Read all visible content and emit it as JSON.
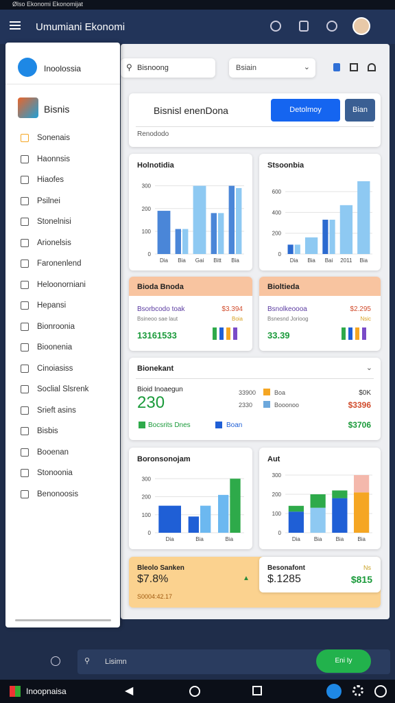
{
  "status_bar": {
    "title": "Ølso Ekonomi Ekonomijat"
  },
  "app_bar": {
    "title": "Umumiani Ekonomi"
  },
  "sidebar": {
    "brand": "Inoolossia",
    "section": "Bisnis",
    "items": [
      "Sonenais",
      "Haonnsis",
      "Hiaofes",
      "Psilnei",
      "Stonelnisi",
      "Arionelsis",
      "Faronenlend",
      "Heloonorniani",
      "Hepansi",
      "Bionroonia",
      "Bioonenia",
      "Cinoiasiss",
      "Soclial Slsrenk",
      "Srieft asins",
      "Bisbis",
      "Booenan",
      "Stonoonia",
      "Benonoosis"
    ]
  },
  "search": {
    "placeholder": "Bisnoong",
    "select": "Bsiain"
  },
  "header_card": {
    "title": "Bisnisl enenDona",
    "primary_button": "Detolmoy",
    "secondary_button": "Bian",
    "subtitle": "Renododo"
  },
  "charts": [
    {
      "type": "bar",
      "title": "Holnotidia",
      "categories": [
        "Dia",
        "Bia",
        "Gai",
        "Bitt",
        "Bia"
      ],
      "ylim": [
        0,
        320
      ],
      "yticks": [
        0,
        100,
        200,
        300
      ],
      "series": [
        {
          "color": "#4a86d8",
          "values": [
            190,
            110,
            null,
            180,
            300
          ]
        },
        {
          "color": "#8ec9f2",
          "values": [
            null,
            110,
            300,
            180,
            290
          ]
        }
      ]
    },
    {
      "type": "bar",
      "title": "Stsoonbia",
      "categories": [
        "Dia",
        "Bia",
        "Bai",
        "2011",
        "Bia"
      ],
      "ylim": [
        0,
        700
      ],
      "yticks": [
        0,
        200,
        400,
        600
      ],
      "series": [
        {
          "color": "#2b6ad0",
          "values": [
            90,
            null,
            330,
            null,
            null
          ]
        },
        {
          "color": "#8ec9f2",
          "values": [
            90,
            160,
            330,
            470,
            700
          ]
        }
      ]
    },
    {
      "type": "bar",
      "title": "Boronsonojam",
      "categories": [
        "Dia",
        "Bia",
        "Bia"
      ],
      "ylim": [
        0,
        320
      ],
      "yticks": [
        0,
        100,
        200,
        300
      ],
      "series": [
        {
          "color": "#1f5fd6",
          "values": [
            150,
            90,
            null
          ]
        },
        {
          "color": "#6cb8f0",
          "values": [
            null,
            150,
            210
          ]
        },
        {
          "color": "#2eaa4a",
          "values": [
            null,
            null,
            300
          ]
        }
      ]
    },
    {
      "type": "stacked_bar",
      "title": "Aut",
      "categories": [
        "Dia",
        "Bia",
        "Bia",
        "Bia"
      ],
      "ylim": [
        0,
        300
      ],
      "yticks": [
        0,
        100,
        200,
        300
      ],
      "series": [
        {
          "color": "#1f5fd6",
          "values": [
            110,
            null,
            180,
            null
          ]
        },
        {
          "color": "#8ec9f2",
          "values": [
            null,
            130,
            null,
            null
          ]
        },
        {
          "color": "#2eaa4a",
          "values": [
            30,
            70,
            40,
            null
          ]
        },
        {
          "color": "#f5a623",
          "values": [
            null,
            null,
            null,
            210
          ]
        },
        {
          "color": "#f4b8ac",
          "values": [
            null,
            null,
            null,
            90
          ]
        }
      ]
    }
  ],
  "metric_cards": [
    {
      "title": "Bioda Bnoda",
      "label": "Bsorbcodo toak",
      "value": "$3.394",
      "sub_label": "Bsineoo sae laut",
      "sub_value": "Boia",
      "big": "13161533"
    },
    {
      "title": "Bioltieda",
      "label": "Bsnolkeoooa",
      "value": "$2.295",
      "sub_label": "Bsnesnd Jorioog",
      "sub_value": "Nsic",
      "big": "33.39"
    }
  ],
  "wide_card": {
    "title": "Bionekant",
    "kicker": "Bioid Inoaegun",
    "big": "230",
    "legend": [
      {
        "amount": "33900",
        "label": "Boa",
        "value": "$0K"
      },
      {
        "amount": "2330",
        "label": "Booonoo",
        "value": "$3396"
      }
    ],
    "footer_items": [
      "Bocsrits Dnes",
      "Boan"
    ],
    "footer_value": "$3706"
  },
  "bottom_cards": [
    {
      "title": "Bleolo Sanken",
      "value": "$7.8%",
      "sub": "S0004:42.17"
    },
    {
      "title": "Besonafont",
      "value": "$.1285",
      "side": "$815",
      "badge": "Ns"
    }
  ],
  "bottom_bar": {
    "search": "Lisimn",
    "button": "Eni Iy"
  },
  "nav_bar": {
    "label": "Inoopnaisa"
  }
}
